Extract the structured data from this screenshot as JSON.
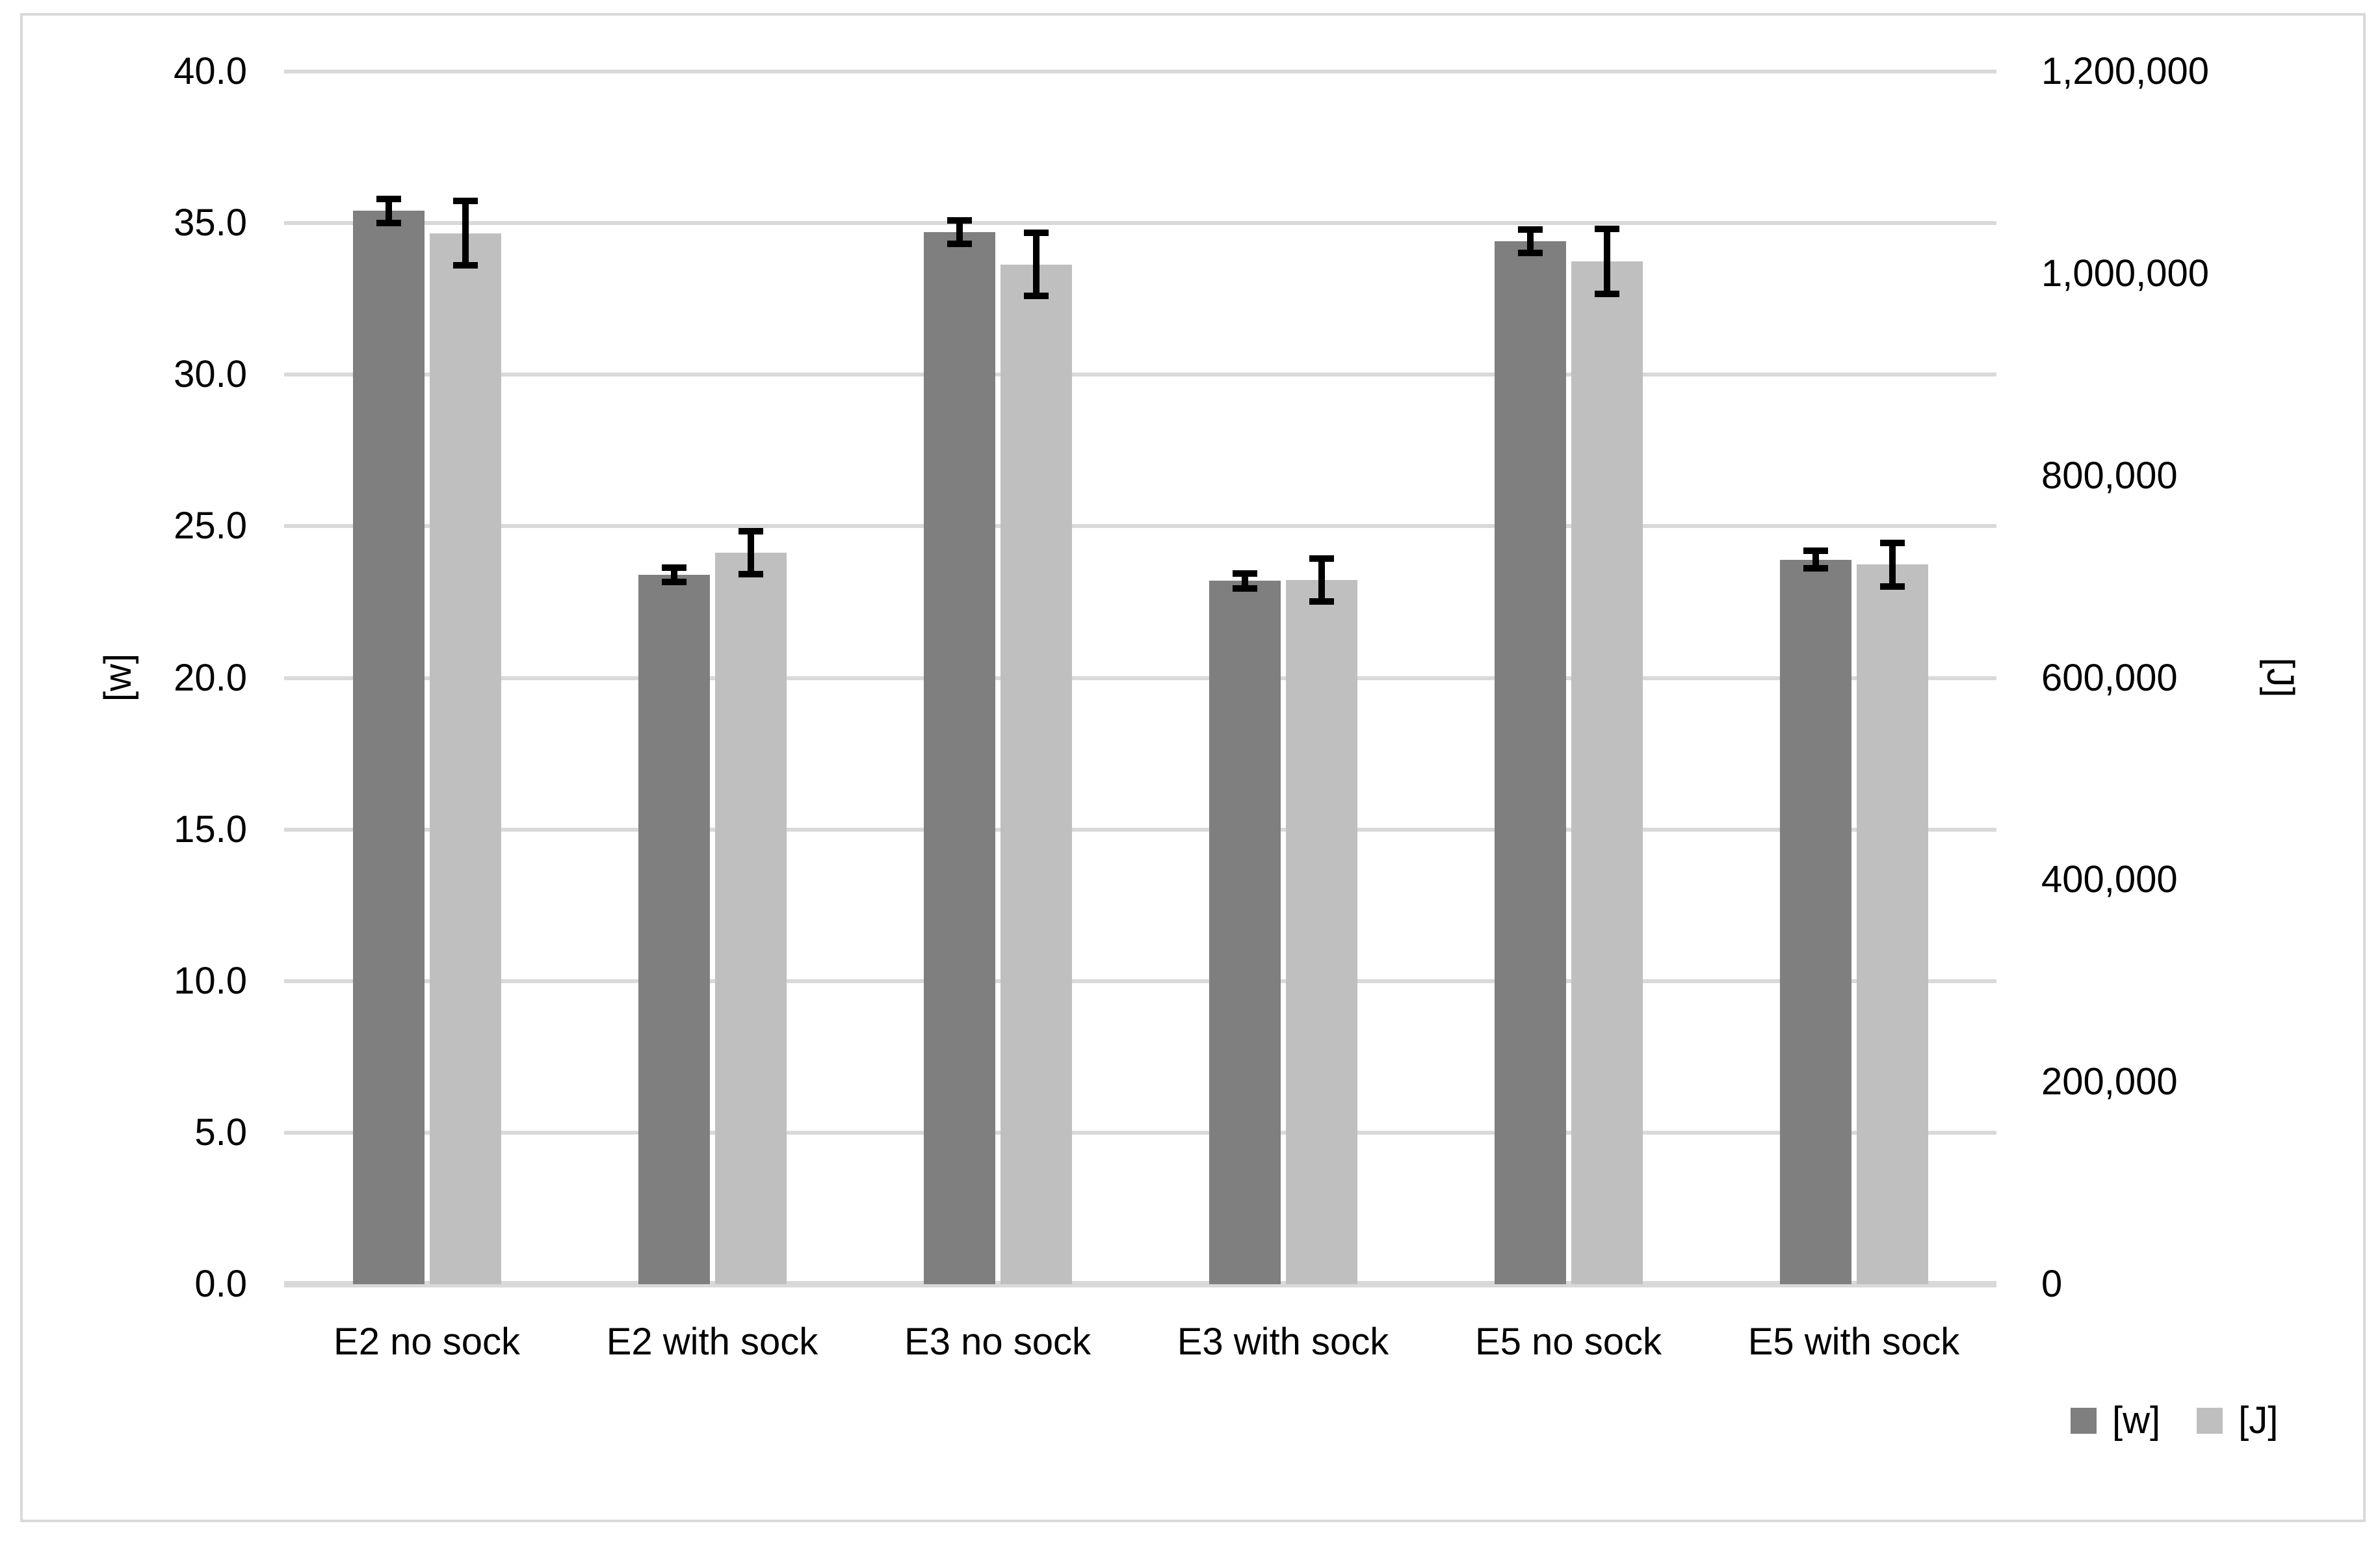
{
  "chart_data": {
    "type": "bar",
    "title": "",
    "categories": [
      "E2 no sock",
      "E2 with sock",
      "E3 no sock",
      "E3 with sock",
      "E5 no sock",
      "E5 with sock"
    ],
    "series": [
      {
        "name": "[w]",
        "axis": "left",
        "color": "#7F7F7F",
        "values": [
          35.4,
          23.4,
          34.7,
          23.2,
          34.4,
          23.9
        ],
        "errors": [
          0.5,
          0.35,
          0.5,
          0.35,
          0.5,
          0.4
        ]
      },
      {
        "name": "[J]",
        "axis": "right",
        "color": "#BFBFBF",
        "values": [
          1040000,
          724000,
          1009000,
          697000,
          1012000,
          712000
        ],
        "errors": [
          35000,
          24500,
          34500,
          24500,
          35500,
          24500
        ]
      }
    ],
    "left_axis": {
      "label": "[w]",
      "min": 0,
      "max": 40,
      "step": 5,
      "tick_labels": [
        "0.0",
        "5.0",
        "10.0",
        "15.0",
        "20.0",
        "25.0",
        "30.0",
        "35.0",
        "40.0"
      ]
    },
    "right_axis": {
      "label": "[J]",
      "min": 0,
      "max": 1200000,
      "step": 200000,
      "tick_labels": [
        "0",
        "200,000",
        "400,000",
        "600,000",
        "800,000",
        "1,000,000",
        "1,200,000"
      ]
    },
    "grid": true,
    "legend_position": "bottom-right",
    "legend": [
      "[w]",
      "[J]"
    ],
    "error_bars": true,
    "colors": {
      "bar_w": "#7F7F7F",
      "bar_j": "#BFBFBF",
      "gridline": "#D9D9D9",
      "axis_line": "#D9D9D9",
      "error_bar": "#000000",
      "frame_border": "#D9D9D9",
      "background": "#FFFFFF",
      "text": "#000000"
    }
  }
}
